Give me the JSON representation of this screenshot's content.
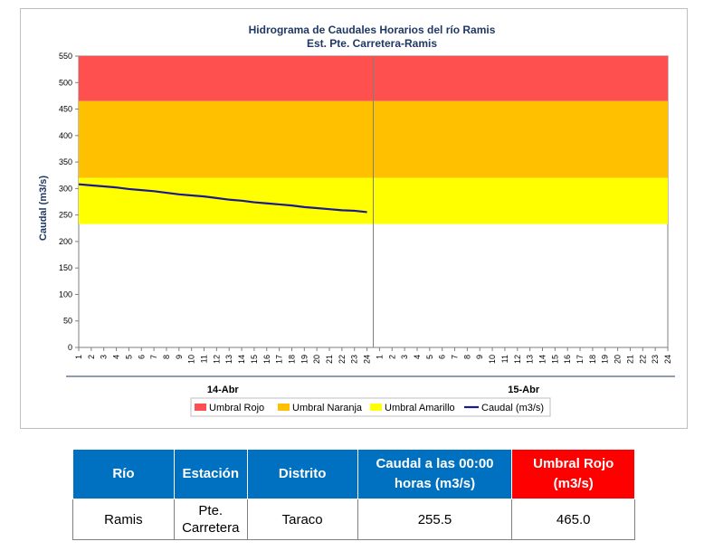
{
  "chart_data": {
    "type": "line",
    "title": "Hidrograma de Caudales Horarios del río Ramis",
    "subtitle": "Est. Pte. Carretera-Ramis",
    "ylabel": "Caudal  (m3/s)",
    "ylim": [
      0,
      550
    ],
    "yticks": [
      0,
      50,
      100,
      150,
      200,
      250,
      300,
      350,
      400,
      450,
      500,
      550
    ],
    "x_hour_labels": [
      "1",
      "2",
      "3",
      "4",
      "5",
      "6",
      "7",
      "8",
      "9",
      "10",
      "11",
      "12",
      "13",
      "14",
      "15",
      "16",
      "17",
      "18",
      "19",
      "20",
      "21",
      "22",
      "23",
      "24"
    ],
    "days": [
      "14-Abr",
      "15-Abr"
    ],
    "thresholds": [
      {
        "name": "Umbral Rojo",
        "from": 465,
        "to": 550,
        "color": "#ff5050"
      },
      {
        "name": "Umbral Naranja",
        "from": 320,
        "to": 465,
        "color": "#ffc000"
      },
      {
        "name": "Umbral Amarillo",
        "from": 233,
        "to": 320,
        "color": "#ffff00"
      }
    ],
    "series": [
      {
        "name": "Caudal (m3/s)",
        "color": "#1a1a8c",
        "day": 0,
        "hours": [
          1,
          2,
          3,
          4,
          5,
          6,
          7,
          8,
          9,
          10,
          11,
          12,
          13,
          14,
          15,
          16,
          17,
          18,
          19,
          20,
          21,
          22,
          23,
          24
        ],
        "values": [
          308,
          306,
          304,
          302,
          299,
          297,
          295,
          292,
          289,
          287,
          285,
          282,
          279,
          277,
          274,
          272,
          270,
          268,
          265,
          263,
          261,
          259,
          258,
          255.5
        ]
      }
    ],
    "legend": [
      "Umbral Rojo",
      "Umbral Naranja",
      "Umbral Amarillo",
      "Caudal (m3/s)"
    ],
    "legend_position": "bottom"
  },
  "table": {
    "headers": {
      "rio": "Río",
      "estacion": "Estación",
      "distrito": "Distrito",
      "caudal": "Caudal a las 00:00 horas (m3/s)",
      "umbral": "Umbral Rojo (m3/s)"
    },
    "row": {
      "rio": "Ramis",
      "estacion": "Pte. Carretera",
      "distrito": "Taraco",
      "caudal": "255.5",
      "umbral": "465.0"
    }
  }
}
